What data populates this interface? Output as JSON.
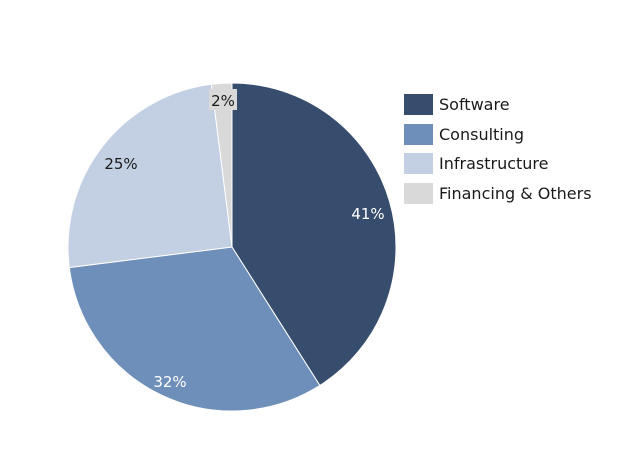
{
  "chart_data": {
    "type": "pie",
    "title": "",
    "categories": [
      "Software",
      "Consulting",
      "Infrastructure",
      "Financing & Others"
    ],
    "values": [
      41,
      32,
      25,
      2
    ],
    "labels": [
      "41%",
      "32%",
      "25%",
      "2%"
    ],
    "colors": [
      "#374d6e",
      "#6f8fbb",
      "#c3cfe2",
      "#d9d9d9"
    ],
    "legend_position": "right",
    "start_angle_deg": 0,
    "direction": "clockwise"
  },
  "legend": {
    "items": [
      {
        "label": "Software",
        "color": "#374d6e"
      },
      {
        "label": "Consulting",
        "color": "#6f8fbb"
      },
      {
        "label": "Infrastructure",
        "color": "#c3cfe2"
      },
      {
        "label": "Financing & Others",
        "color": "#d9d9d9"
      }
    ]
  }
}
